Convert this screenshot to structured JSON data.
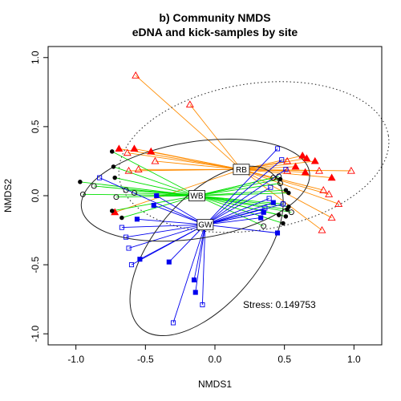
{
  "chart_data": {
    "type": "scatter",
    "title": "b) Community NMDS",
    "subtitle": "eDNA and kick-samples by site",
    "xlabel": "NMDS1",
    "ylabel": "NMDS2",
    "xlim": [
      -1.2,
      1.2
    ],
    "ylim": [
      -1.08,
      1.08
    ],
    "x_ticks": [
      -1.0,
      -0.5,
      0.0,
      0.5,
      1.0
    ],
    "y_ticks": [
      -1.0,
      -0.5,
      0.0,
      0.5,
      1.0
    ],
    "x_tick_labels": [
      "-1.0",
      "-0.5",
      "0.0",
      "0.5",
      "1.0"
    ],
    "y_tick_labels": [
      "-1.0",
      "-0.5",
      "0.0",
      "0.5",
      "1.0"
    ],
    "grid": false,
    "annotation": "Stress: 0.149753",
    "centroids": [
      {
        "label": "RB",
        "x": 0.19,
        "y": 0.19,
        "color": "#ff8c00"
      },
      {
        "label": "WB",
        "x": -0.13,
        "y": 0.0,
        "color": "#00e000"
      },
      {
        "label": "GW",
        "x": -0.07,
        "y": -0.21,
        "color": "#0000ee"
      }
    ],
    "ellipses": [
      {
        "site": "RB",
        "cx": 0.28,
        "cy": 0.28,
        "rx": 0.98,
        "ry": 0.53,
        "angle": -9,
        "style": "dotted"
      },
      {
        "site": "WB",
        "cx": -0.14,
        "cy": 0.04,
        "rx": 0.83,
        "ry": 0.35,
        "angle": -9,
        "style": "solid"
      },
      {
        "site": "GW",
        "cx": -0.06,
        "cy": -0.4,
        "rx": 0.73,
        "ry": 0.38,
        "angle": -50,
        "style": "solid"
      }
    ],
    "series": [
      {
        "site": "RB",
        "method": "kick",
        "marker": "triangle-open",
        "color": "#ff0000",
        "centroid": 0,
        "points": [
          [
            -0.57,
            0.87
          ],
          [
            -0.18,
            0.66
          ],
          [
            -0.63,
            0.31
          ],
          [
            -0.55,
            0.19
          ],
          [
            -0.62,
            0.18
          ],
          [
            -0.43,
            0.25
          ],
          [
            0.52,
            0.25
          ],
          [
            0.52,
            0.18
          ],
          [
            0.75,
            0.18
          ],
          [
            0.98,
            0.18
          ],
          [
            0.82,
            0.01
          ],
          [
            0.78,
            0.04
          ],
          [
            0.89,
            -0.06
          ],
          [
            0.84,
            -0.16
          ],
          [
            0.77,
            -0.25
          ]
        ]
      },
      {
        "site": "RB",
        "method": "eDNA",
        "marker": "triangle-filled",
        "color": "#ff0000",
        "centroid": 0,
        "points": [
          [
            -0.69,
            0.34
          ],
          [
            -0.58,
            0.34
          ],
          [
            -0.46,
            0.32
          ],
          [
            -0.72,
            -0.12
          ],
          [
            0.58,
            0.21
          ],
          [
            0.63,
            0.29
          ],
          [
            0.66,
            0.27
          ],
          [
            0.72,
            0.25
          ],
          [
            0.65,
            0.17
          ],
          [
            0.84,
            0.13
          ]
        ]
      },
      {
        "site": "WB",
        "method": "kick",
        "marker": "circle-open",
        "color": "#000000",
        "centroid": 1,
        "points": [
          [
            -0.87,
            0.07
          ],
          [
            -0.64,
            0.04
          ],
          [
            -0.58,
            0.02
          ],
          [
            -0.95,
            0.01
          ],
          [
            -0.71,
            -0.01
          ],
          [
            0.42,
            0.13
          ],
          [
            0.46,
            0.14
          ],
          [
            0.47,
            0.09
          ],
          [
            0.49,
            -0.06
          ],
          [
            0.55,
            -0.12
          ],
          [
            0.35,
            -0.22
          ]
        ]
      },
      {
        "site": "WB",
        "method": "eDNA",
        "marker": "circle-filled",
        "color": "#000000",
        "centroid": 1,
        "points": [
          [
            -0.74,
            0.32
          ],
          [
            -0.73,
            0.21
          ],
          [
            -0.72,
            0.13
          ],
          [
            -0.97,
            0.1
          ],
          [
            -0.74,
            -0.11
          ],
          [
            -0.67,
            -0.16
          ],
          [
            0.47,
            0.12
          ],
          [
            0.51,
            0.04
          ],
          [
            0.53,
            0.02
          ],
          [
            0.53,
            -0.08
          ],
          [
            0.52,
            -0.1
          ],
          [
            0.46,
            -0.14
          ],
          [
            0.51,
            -0.15
          ],
          [
            0.49,
            -0.2
          ]
        ]
      },
      {
        "site": "GW",
        "method": "kick",
        "marker": "square-open",
        "color": "#0000ee",
        "centroid": 2,
        "points": [
          [
            -0.83,
            0.13
          ],
          [
            -0.67,
            -0.23
          ],
          [
            -0.64,
            -0.3
          ],
          [
            -0.62,
            -0.38
          ],
          [
            -0.6,
            -0.5
          ],
          [
            -0.3,
            -0.92
          ],
          [
            -0.09,
            -0.79
          ],
          [
            0.45,
            0.34
          ],
          [
            0.48,
            0.26
          ],
          [
            0.51,
            0.19
          ],
          [
            0.4,
            0.06
          ],
          [
            0.39,
            -0.02
          ],
          [
            0.36,
            -0.09
          ],
          [
            0.35,
            -0.12
          ],
          [
            0.49,
            -0.06
          ]
        ]
      },
      {
        "site": "GW",
        "method": "eDNA",
        "marker": "square-filled",
        "color": "#0000ee",
        "centroid": 2,
        "points": [
          [
            -0.42,
            0.0
          ],
          [
            -0.44,
            -0.07
          ],
          [
            -0.56,
            -0.17
          ],
          [
            -0.54,
            -0.46
          ],
          [
            -0.33,
            -0.48
          ],
          [
            -0.15,
            -0.61
          ],
          [
            -0.14,
            -0.7
          ],
          [
            0.42,
            -0.05
          ],
          [
            0.35,
            -0.12
          ],
          [
            0.33,
            -0.16
          ],
          [
            0.45,
            -0.27
          ]
        ]
      }
    ]
  }
}
